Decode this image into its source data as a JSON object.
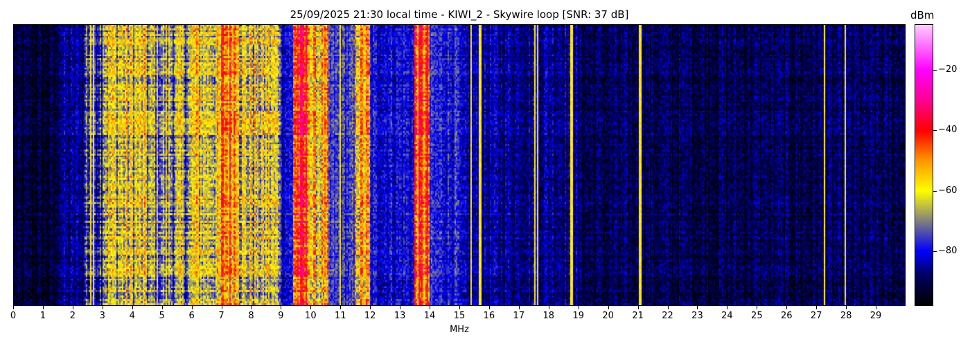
{
  "chart_data": {
    "type": "heatmap",
    "title": "25/09/2025 21:30 local time - KIWI_2 - Skywire loop [SNR: 37 dB]",
    "xlabel": "MHz",
    "xlim": [
      0,
      30
    ],
    "xticks": [
      "0",
      "1",
      "2",
      "3",
      "4",
      "5",
      "6",
      "7",
      "8",
      "9",
      "10",
      "11",
      "12",
      "13",
      "14",
      "15",
      "16",
      "17",
      "18",
      "19",
      "20",
      "21",
      "22",
      "23",
      "24",
      "25",
      "26",
      "27",
      "28",
      "29"
    ],
    "colorbar": {
      "label": "dBm",
      "range": [
        -98,
        -5
      ],
      "ticks": [
        "−20",
        "−40",
        "−60",
        "−80"
      ],
      "tick_values": [
        -20,
        -40,
        -60,
        -80
      ],
      "colormap": [
        {
          "v": -98,
          "c": "#000000"
        },
        {
          "v": -88,
          "c": "#000060"
        },
        {
          "v": -80,
          "c": "#0000ff"
        },
        {
          "v": -70,
          "c": "#808080"
        },
        {
          "v": -60,
          "c": "#ffff00"
        },
        {
          "v": -50,
          "c": "#ff9900"
        },
        {
          "v": -40,
          "c": "#ff0000"
        },
        {
          "v": -30,
          "c": "#ff0090"
        },
        {
          "v": -20,
          "c": "#ff00ff"
        },
        {
          "v": -5,
          "c": "#ffccff"
        }
      ]
    },
    "mean_level_profile_dbm": [
      {
        "f": [
          0,
          1.5
        ],
        "dbm": -93
      },
      {
        "f": [
          1.5,
          2.4
        ],
        "dbm": -86
      },
      {
        "f": [
          2.4,
          3.0
        ],
        "dbm": -74
      },
      {
        "f": [
          3.0,
          4.5
        ],
        "dbm": -63
      },
      {
        "f": [
          4.5,
          6.0
        ],
        "dbm": -68
      },
      {
        "f": [
          6.0,
          7.0
        ],
        "dbm": -61
      },
      {
        "f": [
          7.0,
          7.6
        ],
        "dbm": -47
      },
      {
        "f": [
          7.6,
          9.0
        ],
        "dbm": -63
      },
      {
        "f": [
          9.0,
          9.4
        ],
        "dbm": -80
      },
      {
        "f": [
          9.4,
          10.0
        ],
        "dbm": -43
      },
      {
        "f": [
          10.0,
          10.6
        ],
        "dbm": -57
      },
      {
        "f": [
          10.6,
          11.5
        ],
        "dbm": -76
      },
      {
        "f": [
          11.5,
          12.0
        ],
        "dbm": -55
      },
      {
        "f": [
          12.0,
          13.5
        ],
        "dbm": -80
      },
      {
        "f": [
          13.5,
          14.0
        ],
        "dbm": -45
      },
      {
        "f": [
          14.0,
          15.0
        ],
        "dbm": -78
      },
      {
        "f": [
          15.0,
          19.0
        ],
        "dbm": -85
      },
      {
        "f": [
          19.0,
          30.0
        ],
        "dbm": -90
      }
    ],
    "carriers_mhz": [
      2.6,
      2.7,
      11.0,
      11.9,
      13.7,
      15.4,
      15.7,
      17.55,
      17.65,
      18.8,
      21.1,
      27.3,
      28.0
    ]
  }
}
